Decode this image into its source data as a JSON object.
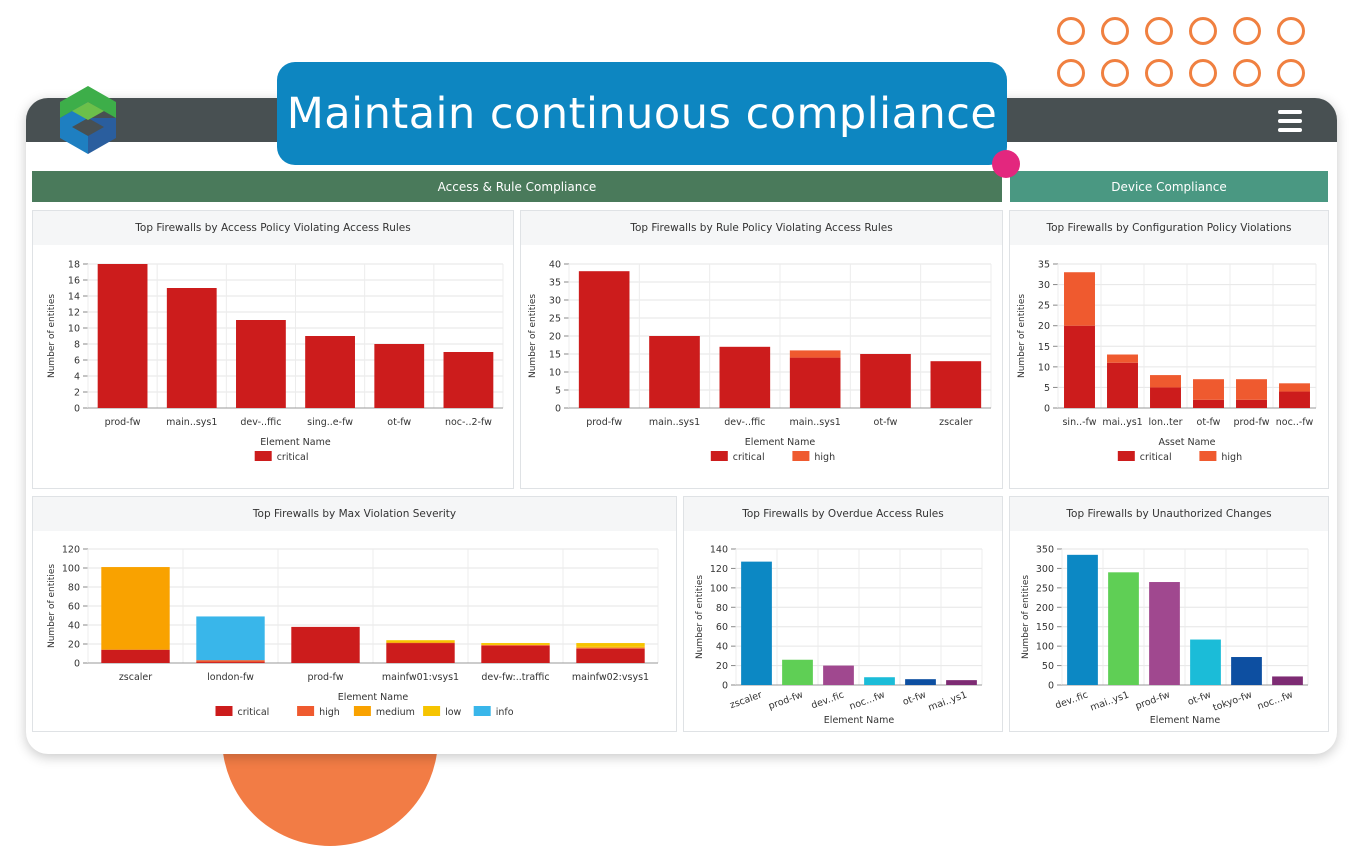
{
  "banner": {
    "title": "Maintain continuous compliance"
  },
  "icons": {
    "menu": "hamburger-menu-icon",
    "logo": "app-logo-icon"
  },
  "colors": {
    "critical": "#cc1c1c",
    "high": "#ef5a2f",
    "medium": "#f9a200",
    "low": "#f6c400",
    "info": "#39b6ea",
    "section_access": "#4a7a5b",
    "section_device": "#4a9882",
    "banner": "#0d86c1",
    "accent_orange": "#f27c45"
  },
  "sections": {
    "access": "Access & Rule Compliance",
    "device": "Device Compliance"
  },
  "chart_data": [
    {
      "id": "c1",
      "type": "bar",
      "title": "Top Firewalls by Access Policy Violating Access Rules",
      "xlabel": "Element Name",
      "ylabel": "Number of entities",
      "ylim": [
        0,
        18
      ],
      "yticks": [
        0,
        2,
        4,
        6,
        8,
        10,
        12,
        14,
        16,
        18
      ],
      "categories": [
        "prod-fw",
        "main..sys1",
        "dev-..ffic",
        "sing..e-fw",
        "ot-fw",
        "noc-..2-fw"
      ],
      "series": [
        {
          "name": "critical",
          "color": "#cc1c1c",
          "values": [
            18,
            15,
            11,
            9,
            8,
            7
          ]
        }
      ],
      "legend": "bottom",
      "grid": true
    },
    {
      "id": "c2",
      "type": "bar",
      "title": "Top Firewalls by Rule Policy Violating Access Rules",
      "xlabel": "Element Name",
      "ylabel": "Number of entities",
      "ylim": [
        0,
        40
      ],
      "yticks": [
        0,
        5,
        10,
        15,
        20,
        25,
        30,
        35,
        40
      ],
      "categories": [
        "prod-fw",
        "main..sys1",
        "dev-..ffic",
        "main..sys1",
        "ot-fw",
        "zscaler"
      ],
      "series": [
        {
          "name": "critical",
          "color": "#cc1c1c",
          "values": [
            38,
            20,
            17,
            14,
            15,
            13
          ]
        },
        {
          "name": "high",
          "color": "#ef5a2f",
          "values": [
            0,
            0,
            0,
            2,
            0,
            0
          ]
        }
      ],
      "stacked": true,
      "legend": "bottom",
      "grid": true
    },
    {
      "id": "c3",
      "type": "bar",
      "title": "Top Firewalls by Configuration Policy Violations",
      "xlabel": "Asset Name",
      "ylabel": "Number of entities",
      "ylim": [
        0,
        35
      ],
      "yticks": [
        0,
        5,
        10,
        15,
        20,
        25,
        30,
        35
      ],
      "categories": [
        "sin..-fw",
        "mai..ys1",
        "lon..ter",
        "ot-fw",
        "prod-fw",
        "noc..-fw"
      ],
      "series": [
        {
          "name": "critical",
          "color": "#cc1c1c",
          "values": [
            20,
            11,
            5,
            2,
            2,
            4
          ]
        },
        {
          "name": "high",
          "color": "#ef5a2f",
          "values": [
            13,
            2,
            3,
            5,
            5,
            2
          ]
        }
      ],
      "stacked": true,
      "legend": "bottom",
      "grid": true
    },
    {
      "id": "c4",
      "type": "bar",
      "title": "Top Firewalls by Max Violation Severity",
      "xlabel": "Element Name",
      "ylabel": "Number of entities",
      "ylim": [
        0,
        120
      ],
      "yticks": [
        0,
        20,
        40,
        60,
        80,
        100,
        120
      ],
      "categories": [
        "zscaler",
        "london-fw",
        "prod-fw",
        "mainfw01:vsys1",
        "dev-fw:..traffic",
        "mainfw02:vsys1"
      ],
      "series": [
        {
          "name": "critical",
          "color": "#cc1c1c",
          "values": [
            14,
            1,
            38,
            21,
            18,
            15
          ]
        },
        {
          "name": "high",
          "color": "#ef5a2f",
          "values": [
            0,
            2,
            0,
            0,
            1,
            1
          ]
        },
        {
          "name": "medium",
          "color": "#f9a200",
          "values": [
            87,
            0,
            0,
            1,
            0,
            1
          ]
        },
        {
          "name": "low",
          "color": "#f6c400",
          "values": [
            0,
            0,
            0,
            2,
            2,
            4
          ]
        },
        {
          "name": "info",
          "color": "#39b6ea",
          "values": [
            0,
            46,
            0,
            0,
            0,
            0
          ]
        }
      ],
      "stacked": true,
      "legend": "bottom",
      "grid": true
    },
    {
      "id": "c5",
      "type": "bar",
      "title": "Top Firewalls by Overdue Access Rules",
      "xlabel": "Element Name",
      "ylabel": "Number of entities",
      "ylim": [
        0,
        140
      ],
      "yticks": [
        0,
        20,
        40,
        60,
        80,
        100,
        120,
        140
      ],
      "categories": [
        "zscaler",
        "prod-fw",
        "dev..fic",
        "noc...fw",
        "ot-fw",
        "mai..ys1"
      ],
      "values": [
        127,
        26,
        20,
        8,
        6,
        5
      ],
      "colors": [
        "#0c88c4",
        "#5fcf55",
        "#a0488f",
        "#1bbcd8",
        "#0d4fa1",
        "#7d2b73"
      ],
      "rotated_labels": true,
      "grid": true
    },
    {
      "id": "c6",
      "type": "bar",
      "title": "Top Firewalls by Unauthorized Changes",
      "xlabel": "Element Name",
      "ylabel": "Number of entities",
      "ylim": [
        0,
        350
      ],
      "yticks": [
        0,
        50,
        100,
        150,
        200,
        250,
        300,
        350
      ],
      "categories": [
        "dev..fic",
        "mai..ys1",
        "prod-fw",
        "ot-fw",
        "tokyo-fw",
        "noc...fw"
      ],
      "values": [
        335,
        290,
        265,
        117,
        72,
        22
      ],
      "colors": [
        "#0c88c4",
        "#5fcf55",
        "#a0488f",
        "#1bbcd8",
        "#0d4fa1",
        "#7d2b73"
      ],
      "rotated_labels": true,
      "grid": true
    }
  ]
}
